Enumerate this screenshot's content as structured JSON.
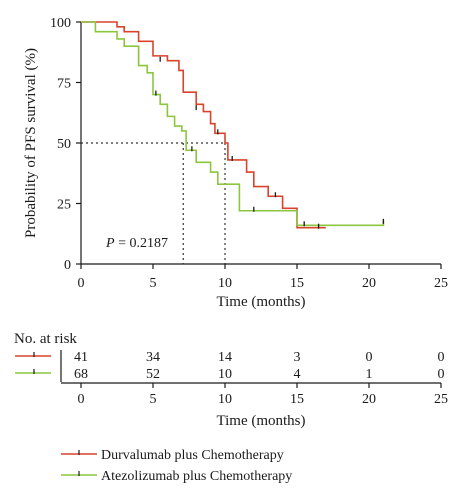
{
  "chart_data": {
    "type": "line",
    "step": true,
    "xlabel": "Time (months)",
    "ylabel": "Probability of PFS survival (%)",
    "xlim": [
      0,
      25
    ],
    "ylim": [
      0,
      100
    ],
    "xticks": [
      "0",
      "5",
      "10",
      "15",
      "20",
      "25"
    ],
    "yticks": [
      "0",
      "25",
      "50",
      "75",
      "100"
    ],
    "grid": false,
    "annotation": {
      "text": "P = 0.2187",
      "p_label": "P",
      "p_rest": " = 0.2187"
    },
    "median_line_y": 50,
    "medians": [
      7.1,
      10.0
    ],
    "series": [
      {
        "name": "Durvalumab plus Chemotherapy",
        "color": "#d9432b",
        "steps": [
          [
            0,
            100
          ],
          [
            2.5,
            98
          ],
          [
            3,
            96
          ],
          [
            4,
            92
          ],
          [
            5,
            86
          ],
          [
            6,
            84
          ],
          [
            6.8,
            80
          ],
          [
            7.1,
            71
          ],
          [
            8,
            66
          ],
          [
            8.5,
            63
          ],
          [
            9,
            58
          ],
          [
            9.3,
            54
          ],
          [
            10,
            50
          ],
          [
            10.2,
            43
          ],
          [
            11.5,
            38
          ],
          [
            12,
            32
          ],
          [
            13,
            28
          ],
          [
            14,
            23
          ],
          [
            15,
            15
          ],
          [
            17,
            15
          ]
        ],
        "censored": [
          [
            5.5,
            84
          ],
          [
            8,
            64
          ],
          [
            9.5,
            54
          ],
          [
            10.5,
            43
          ],
          [
            13.5,
            28
          ],
          [
            16.5,
            15
          ]
        ]
      },
      {
        "name": "Atezolizumab plus Chemotherapy",
        "color": "#8cc63f",
        "steps": [
          [
            0,
            100
          ],
          [
            1,
            96
          ],
          [
            2.5,
            93
          ],
          [
            3,
            90
          ],
          [
            4,
            82
          ],
          [
            4.6,
            79
          ],
          [
            5,
            70
          ],
          [
            5.5,
            66
          ],
          [
            6,
            61
          ],
          [
            6.5,
            57
          ],
          [
            7,
            55
          ],
          [
            7.3,
            47
          ],
          [
            8,
            42
          ],
          [
            9,
            38
          ],
          [
            9.5,
            33
          ],
          [
            11,
            22
          ],
          [
            15,
            16
          ],
          [
            21,
            18
          ]
        ],
        "censored": [
          [
            5.2,
            70
          ],
          [
            7.7,
            47
          ],
          [
            12,
            22
          ],
          [
            15.5,
            16
          ],
          [
            21,
            17
          ]
        ]
      }
    ]
  },
  "risk_table": {
    "title": "No. at risk",
    "rows": [
      {
        "name": "Durvalumab plus Chemotherapy",
        "color": "#d9432b",
        "values": [
          "41",
          "34",
          "14",
          "3",
          "0",
          "0"
        ]
      },
      {
        "name": "Atezolizumab plus Chemotherapy",
        "color": "#8cc63f",
        "values": [
          "68",
          "52",
          "10",
          "4",
          "1",
          "0"
        ]
      }
    ],
    "xticks": [
      "0",
      "5",
      "10",
      "15",
      "20",
      "25"
    ],
    "xlabel": "Time (months)"
  },
  "legend": [
    {
      "label": "Durvalumab plus Chemotherapy",
      "color": "#d9432b"
    },
    {
      "label": "Atezolizumab plus Chemotherapy",
      "color": "#8cc63f"
    }
  ]
}
